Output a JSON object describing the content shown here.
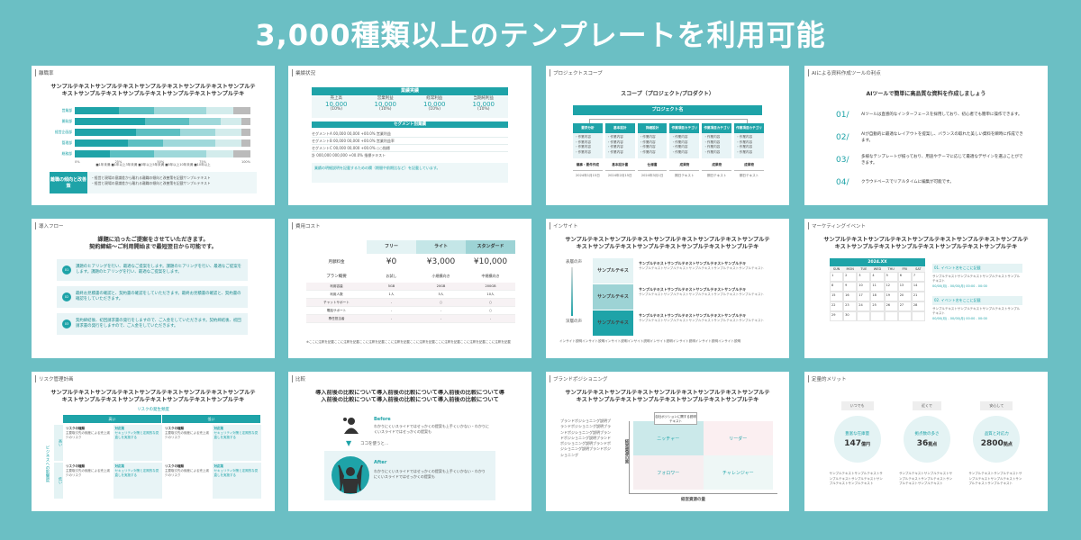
{
  "title": "3,000種類以上のテンプレートを利用可能",
  "sample": "サンプルテキストサンプルテキストサンプルテキストサンプルテキストサンプルテキストサンプルテキストサンプルテキストサンプルテキストサンプルテキ",
  "colors": {
    "background": "#6bbfc4",
    "accent": "#1ea3a8"
  },
  "cards": {
    "turnover": {
      "label": "離職率",
      "rows": [
        "営業部",
        "開発部",
        "経営企画部",
        "管理部",
        "総務部"
      ],
      "ticks": [
        "0%",
        "25%",
        "50%",
        "75%",
        "100%"
      ],
      "legend": "■1年未満 ■1年以上3年未満 ■3年以上5年未満 ■5年以上10年未満 ■10年以上",
      "box_title": "離職の傾向と改善策",
      "bullets": [
        "・経営と現場の意識差から離れる離職の傾向と改善策を記載サンプルテキスト",
        "・経営と現場の意識差から離れる離職の傾向と改善策を記載サンプルテキスト"
      ]
    },
    "performance": {
      "label": "業績状況",
      "bar": "業績実績",
      "kpis": [
        {
          "name": "売上高",
          "value": "10,000",
          "unit": "百万円",
          "pct": "(10%)"
        },
        {
          "name": "営業利益",
          "value": "10,000",
          "unit": "百万円",
          "pct": "(10%)"
        },
        {
          "name": "経常利益",
          "value": "10,000",
          "unit": "百万円",
          "pct": "(10%)"
        },
        {
          "name": "当期純利益",
          "value": "10,000",
          "unit": "百万円",
          "pct": "(10%)"
        }
      ],
      "seg_bar": "セグメント別業績",
      "seg_rows": [
        "セグメントA  00,000  00,000  +00.0%  営業利益",
        "セグメントB  00,000  00,000  +00.0%  営業利益率",
        "セグメントC  00,000  00,000  +00.0%  ○○指標",
        "計  000,000  000,000  +00.0%  指標テキスト"
      ],
      "note": "業績の明細説明を記載するための欄（期間や前期比など）を記載しています。"
    },
    "scope": {
      "label": "プロジェクトスコープ",
      "heading": "スコープ（プロジェクト/プロダクト）",
      "root": "プロジェクト名",
      "cols": [
        {
          "name": "要求分析",
          "out": "議事・要件作成",
          "date": "2024年1月15日"
        },
        {
          "name": "基本設計",
          "out": "基本設計書",
          "date": "2024年2月15日"
        },
        {
          "name": "詳細設計",
          "out": "仕様書",
          "date": "2024年3月1日"
        },
        {
          "name": "作業項目カテゴリ",
          "out": "成果物",
          "date": "期日テキスト"
        },
        {
          "name": "作業項目カテゴリ",
          "out": "成果物",
          "date": "期日テキスト"
        },
        {
          "name": "作業項目カテゴリ",
          "out": "成果物",
          "date": "期日テキスト"
        }
      ],
      "items": "・作業内容\n・作業内容\n・作業内容\n・作業内容"
    },
    "ai": {
      "label": "AIによる資料作成ツールの利点",
      "heading": "AIツールで簡単に高品質な資料を作成しましょう",
      "items": [
        {
          "num": "01/",
          "text": "AIツールは直感的なインターフェースを採用しており、初心者でも簡単に操作できます。"
        },
        {
          "num": "02/",
          "text": "AIが自動的に最適なレイアウトを提案し、バランスの取れた美しい資料を瞬時に作成できます。"
        },
        {
          "num": "03/",
          "text": "多様なテンプレートが揃っており、用途やテーマに応じて最適なデザインを選ぶことができます。"
        },
        {
          "num": "04/",
          "text": "クラウドベースでリアルタイムに編集が可能です。"
        }
      ]
    },
    "flow": {
      "label": "導入フロー",
      "heading": "課題に沿ったご提案をさせていただきます。\n契約締結〜ご利用開始まで最短翌日から可能です。",
      "steps": [
        {
          "num": "01",
          "text": "課題のヒアリングを行い、最適なご提案をします。課題のヒアリングを行い、最適なご提案をします。課題のヒアリングを行い、最適なご提案をします。"
        },
        {
          "num": "02",
          "text": "最終お見積書の確認と、契約書の確認をしていただきます。最終お見積書の確認と、契約書の確認をしていただきます。"
        },
        {
          "num": "03",
          "text": "契約締結後、初回請求書の発行をしますので、ご入金をしていただきます。契約締結後、初回請求書の発行をしますので、ご入金をしていただきます。"
        }
      ]
    },
    "cost": {
      "label": "費用コスト",
      "plans": [
        "フリー",
        "ライト",
        "スタンダード"
      ],
      "price_label": "月額料金",
      "prices": [
        "¥0",
        "¥3,000",
        "¥10,000"
      ],
      "overview_label": "プラン概要",
      "overviews": [
        "お試し",
        "小規模向き",
        "中規模向き"
      ],
      "rows": [
        {
          "k": "利用容量",
          "v": [
            "5GB",
            "20GB",
            "200GB"
          ]
        },
        {
          "k": "利用人数",
          "v": [
            "1人",
            "5人",
            "10人"
          ]
        },
        {
          "k": "チャットサポート",
          "v": [
            "-",
            "○",
            "○"
          ]
        },
        {
          "k": "電話サポート",
          "v": [
            "-",
            "-",
            "○"
          ]
        },
        {
          "k": "専任担当者",
          "v": [
            "-",
            "-",
            "-"
          ]
        }
      ],
      "note": "※ここに注釈を記載ここに注釈を記載ここに注釈を記載ここに注釈を記載ここに注釈を記載ここに注釈を記載ここに注釈を記載ここに注釈を記載"
    },
    "insight": {
      "label": "インサイト",
      "top": "表層の声",
      "bottom": "深層の声",
      "tier": "サンプルテキス",
      "item_title": "サンプルテキストサンプルテキストサンプルテキストサンプルテキ",
      "item_text": "サンプルテキストサンプルテキストサンプルテキストサンプルテキストサンプルテキスト",
      "note": "インサイト説明インサイト説明インサイト説明インサイト説明インサイト説明インサイト説明インサイト説明インサイト説明"
    },
    "event": {
      "label": "マーケティングイベント",
      "month": "2024.XX",
      "days": [
        "SUN",
        "MON",
        "TUE",
        "WED",
        "THU",
        "FRI",
        "SAT"
      ],
      "events": [
        {
          "title": "01. イベント名をここに記載",
          "text": "サンプルテキストサンプルテキストサンプルテキストサンプルテキスト",
          "time": "00/00(月) - 00/00(月)  00:00 - 00:00"
        },
        {
          "title": "02. イベント名をここに記載",
          "text": "サンプルテキストサンプルテキストサンプルテキストサンプルテキスト",
          "time": "00/00(月) - 00/00(月)  00:00 - 00:00"
        }
      ]
    },
    "risk": {
      "label": "リスク管理計画",
      "freq_label": "リスクの発生頻度",
      "cols": [
        "高い",
        "低い"
      ],
      "rows": [
        "高い",
        "低い"
      ],
      "axis": "ビジネスへの影響度",
      "cell_title": "リスクの種類",
      "cell_text": "主要取引先の倒産による売上減少のリスク",
      "plan_title": "対応策",
      "plan_text": "セキュリティ対策と定期的な見直しを実施する"
    },
    "compare": {
      "label": "比較",
      "heading": "導入前後の比較について導入前後の比較について導入前後の比較について導入前後の比較について導入前後の比較について導入前後の比較について",
      "before": "Before",
      "before_text": "わかりにくいスライドではせっかくの提案も上手くいかない・わかりにくいスライドではせっかくの提案も",
      "mid": "ココを使うと…",
      "after": "After",
      "after_text": "わかりにくいスライドではせっかくの提案も上手くいかない・わかりにくいスライドではせっかくの提案も"
    },
    "brand": {
      "label": "ブランドポジショニング",
      "desc": "ブランドポジショニング説明ブランドポジショニング説明ブランドポジショニング説明ブランドポジショニング説明ブランドポジショニング説明ブランドポジショニング説明ブランドポジショニング",
      "callout": "自社ポジションに関する説明テキスト",
      "quads": [
        "ニッチャー",
        "リーダー",
        "フォロワー",
        "チャレンジャー"
      ],
      "y_axis": "経営資源の質",
      "x_axis": "経営資源の量",
      "hi": "高",
      "lo": "低"
    },
    "merit": {
      "label": "定量的メリット",
      "items": [
        {
          "tag": "いつでも",
          "name": "豊富な在庫量",
          "value": "147",
          "unit": "億円"
        },
        {
          "tag": "近くで",
          "name": "拠点数の多さ",
          "value": "36",
          "unit": "拠点"
        },
        {
          "tag": "安心して",
          "name": "品質と対応力",
          "value": "2800",
          "unit": "拠点"
        }
      ],
      "text": "サンプルテキストサンプルテキストサンプルテキストサンプルテキストサンプルテキストサンプルテキスト"
    }
  }
}
